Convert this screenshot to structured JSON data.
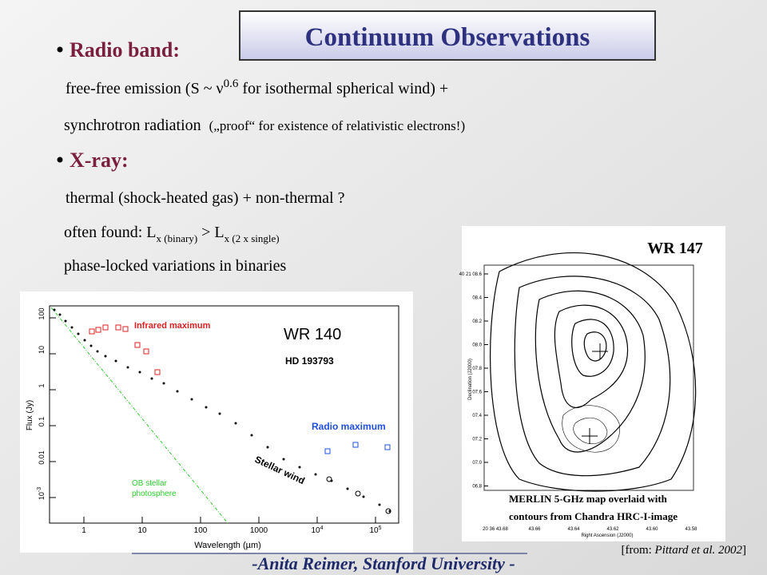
{
  "title": "Continuum Observations",
  "radio": {
    "heading": "Radio band:",
    "line1": [
      "free-free emission (S ~ ν",
      "0.6",
      " for isothermal spherical wind) +"
    ],
    "line2": [
      "synchrotron radiation",
      "(„proof“ for existence of relativistic electrons!)"
    ]
  },
  "xray": {
    "heading": "X-ray:",
    "line1": "thermal (shock-heated gas) + non-thermal ?",
    "line2": [
      "often found: L",
      "x (binary)",
      " > L",
      "x (2 x single)"
    ],
    "line3": "phase-locked variations in binaries"
  },
  "figure1": {
    "name": "WR 140",
    "alias": "HD 193793",
    "ir": "Infrared maximum",
    "radio": "Radio maximum",
    "wind": "Stellar wind",
    "photosphere": [
      "OB stellar",
      "photosphere"
    ],
    "ylabel": "Flux (Jy)",
    "xlabel": "Wavelength (µm)",
    "yticks": [
      "100",
      "10",
      "1",
      "0.1",
      "0.01",
      [
        "10",
        "-3"
      ]
    ],
    "xticks": [
      "1",
      "10",
      "100",
      "1000",
      [
        "10",
        "4"
      ],
      [
        "10",
        "5"
      ]
    ]
  },
  "figure2": {
    "name": "WR 147",
    "yticks": [
      "40 21 08.6",
      "08.4",
      "08.2",
      "08.0",
      "07.8",
      "07.6",
      "07.4",
      "07.2",
      "07.0",
      "06.8"
    ],
    "xticks": [
      "20 36 43.68",
      "43.66",
      "43.64",
      "43.62",
      "43.60",
      "43.58"
    ],
    "ylabel": "Declination (J2000)",
    "xlabel": "Right Ascension (J2000)",
    "caption": [
      "MERLIN 5-GHz map overlaid with",
      "contours from Chandra HRC-I-image"
    ],
    "source": [
      "[from: ",
      "Pittard et al. 2002",
      "]"
    ]
  },
  "footer": "-Anita Reimer, Stanford University -"
}
